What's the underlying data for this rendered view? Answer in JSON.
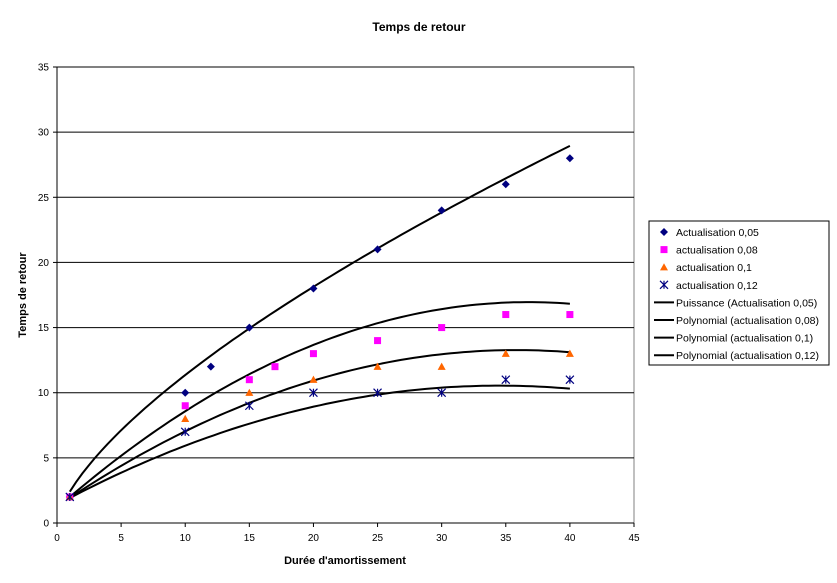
{
  "chart_data": {
    "type": "scatter",
    "title": "Temps de retour",
    "xlabel": "Durée d'amortissement",
    "ylabel": "Temps de retour",
    "xlim": [
      0,
      45
    ],
    "ylim": [
      0,
      35
    ],
    "xticks": [
      0,
      5,
      10,
      15,
      20,
      25,
      30,
      35,
      40,
      45
    ],
    "yticks": [
      0,
      5,
      10,
      15,
      20,
      25,
      30,
      35
    ],
    "grid": "horizontal",
    "legend_position": "right",
    "series": [
      {
        "name": "Actualisation 0,05",
        "marker": "diamond",
        "color": "#000080",
        "x": [
          1,
          10,
          12,
          15,
          20,
          25,
          30,
          35,
          40
        ],
        "y": [
          2,
          10,
          12,
          15,
          18,
          21,
          24,
          26,
          28
        ]
      },
      {
        "name": "actualisation 0,08",
        "marker": "square",
        "color": "#ff00ff",
        "x": [
          1,
          10,
          15,
          17,
          20,
          25,
          30,
          35,
          40
        ],
        "y": [
          2,
          9,
          11,
          12,
          13,
          14,
          15,
          16,
          16
        ]
      },
      {
        "name": "actualisation 0,1",
        "marker": "triangle",
        "color": "#ff6600",
        "x": [
          1,
          10,
          15,
          20,
          25,
          30,
          35,
          40
        ],
        "y": [
          2,
          8,
          10,
          11,
          12,
          12,
          13,
          13
        ]
      },
      {
        "name": "actualisation 0,12",
        "marker": "asterisk",
        "color": "#000080",
        "x": [
          1,
          10,
          15,
          20,
          25,
          30,
          35,
          40
        ],
        "y": [
          2,
          7,
          9,
          10,
          10,
          10,
          11,
          11
        ]
      }
    ],
    "trendlines": [
      {
        "name": "Puissance (Actualisation 0,05)",
        "type": "power",
        "color": "#000000",
        "a": 2.4,
        "b": 0.675,
        "x_range": [
          1,
          40
        ]
      },
      {
        "name": "Polynomial (actualisation 0,08)",
        "type": "polynomial",
        "color": "#000000",
        "coef": [
          1.15,
          0.86,
          -0.0117
        ],
        "x_range": [
          1,
          40
        ]
      },
      {
        "name": "Polynomial (actualisation 0,1)",
        "type": "polynomial",
        "color": "#000000",
        "coef": [
          1.27,
          0.67,
          -0.00935
        ],
        "x_range": [
          1,
          40
        ]
      },
      {
        "name": "Polynomial (actualisation 0,12)",
        "type": "polynomial",
        "color": "#000000",
        "coef": [
          1.4,
          0.53,
          -0.00768
        ],
        "x_range": [
          1,
          40
        ]
      }
    ]
  }
}
